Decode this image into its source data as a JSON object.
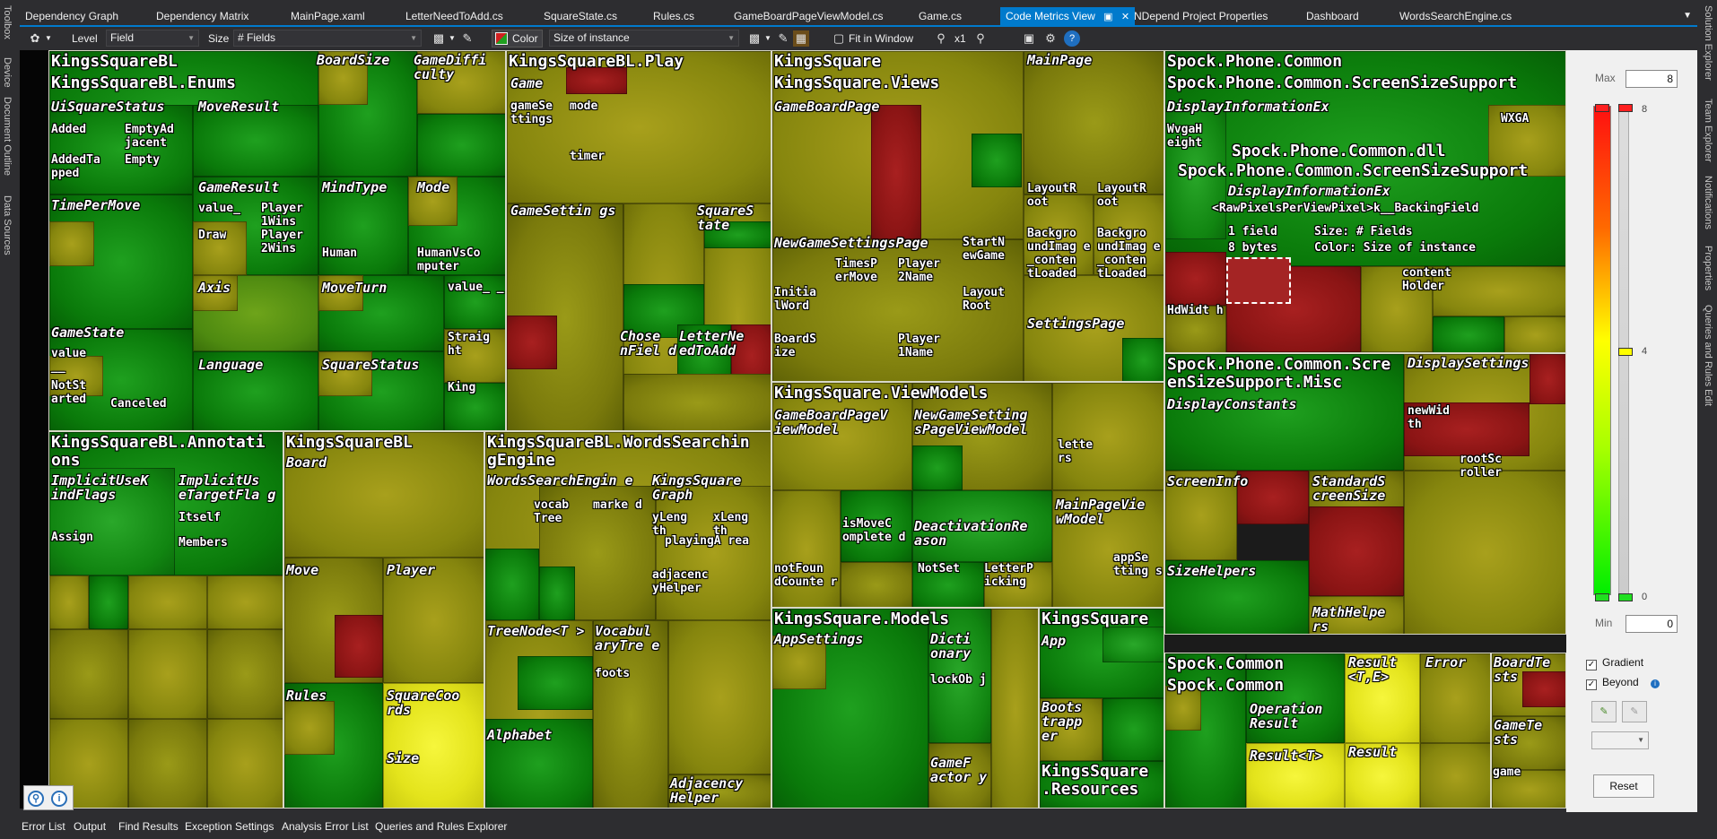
{
  "left_tools": [
    "Toolbox",
    "Device",
    "Document Outline",
    "Data Sources"
  ],
  "right_tools": [
    "Solution Explorer",
    "Team Explorer",
    "Notifications",
    "Properties",
    "Queries and Rules Edit"
  ],
  "doc_tabs": [
    {
      "label": "Dependency Graph"
    },
    {
      "label": "Dependency Matrix"
    },
    {
      "label": "MainPage.xaml"
    },
    {
      "label": "LetterNeedToAdd.cs"
    },
    {
      "label": "SquareState.cs"
    },
    {
      "label": "Rules.cs"
    },
    {
      "label": "GameBoardPageViewModel.cs"
    },
    {
      "label": "Game.cs"
    },
    {
      "label": "Code Metrics View",
      "active": true
    },
    {
      "label": "NDepend Project Properties"
    },
    {
      "label": "Dashboard"
    },
    {
      "label": "WordsSearchEngine.cs"
    }
  ],
  "toolbar": {
    "level_label": "Level",
    "level_value": "Field",
    "size_label": "Size",
    "size_value": "# Fields",
    "color_label": "Color",
    "color_value": "Size of instance",
    "fit_label": "Fit in Window",
    "zoom_value": "x1"
  },
  "treemap_labels": {
    "z1": "KingsSquareBL",
    "z1_enums": "KingsSquareBL.Enums",
    "boardsize": "BoardSize",
    "gamedifficulty": "GameDiffi culty",
    "uisquarestatus": "UiSquareStatus",
    "moveresult": "MoveResult",
    "added": "Added",
    "emptyadjacent": "EmptyAd jacent",
    "empty": "Empty",
    "addedtapped": "AddedTa pped",
    "gameresult": "GameResult",
    "mindtype": "MindType",
    "mode": "Mode",
    "timepermove": "TimePerMove",
    "value_": "value_",
    "player1wins": "Player 1Wins",
    "player2wins": "Player 2Wins",
    "draw": "Draw",
    "human": "Human",
    "humanvscomputer": "HumanVsCo mputer",
    "axis": "Axis",
    "moveturn": "MoveTurn",
    "value_2": "value_ _",
    "gamestate": "GameState",
    "value_3": "value __",
    "language": "Language",
    "squarestatus": "SquareStatus",
    "straight": "Straig ht",
    "king": "King",
    "notstarted": "NotSt arted",
    "canceled": "Canceled",
    "z2": "KingsSquareBL.Play",
    "game": "Game",
    "gamesettings_f": "gameSe ttings",
    "mode_f": "mode",
    "timer": "timer",
    "gamesettings": "GameSettin gs",
    "squarestate": "SquareS tate",
    "chosenfield": "Chose nFiel d",
    "letterneedtoadd": "LetterNe edToAdd",
    "z3": "KingsSquare",
    "z3_views": "KingsSquare.Views",
    "mainpage": "MainPage",
    "gameboardpage": "GameBoardPage",
    "layoutroot1": "LayoutR oot",
    "layoutroot2": "LayoutR oot",
    "newgamesettingspage": "NewGameSettingsPage",
    "startnewgame": "StartN ewGame",
    "timespermove": "TimesP erMove",
    "player2name": "Player 2Name",
    "bg1": "Backgro undImag e _conten tLoaded",
    "bg2": "Backgro undImag e _conten tLoaded",
    "initialword": "Initia lWord",
    "layoutroot3": "Layout Root",
    "boardsize_f": "BoardS ize",
    "player1name": "Player 1Name",
    "settingspage": "SettingsPage",
    "z4": "Spock.Phone.Common",
    "z4_ssup": "Spock.Phone.Common.ScreenSizeSupport",
    "displayinfoex": "DisplayInformationEx",
    "wvgaheight": "WvgaH eight",
    "wxga": "WXGA",
    "tt_dll": "Spock.Phone.Common.dll",
    "tt_ns": "Spock.Phone.Common.ScreenSizeSupport",
    "tt_type": "DisplayInformationEx",
    "tt_field": "<RawPixelsPerViewPixel>k__BackingField",
    "tt_count": "1 field",
    "tt_bytes": "8 bytes",
    "tt_size": "Size: # Fields",
    "tt_color": "Color: Size of instance",
    "contentholder": "content Holder",
    "hdwidth": "HdWidt h",
    "z5": "KingsSquareBL.Annotati ons",
    "implicitusekindflags": "ImplicitUseK indFlags",
    "implicitusetargetflags": "ImplicitUs eTargetFla g",
    "itself": "Itself",
    "assign": "Assign",
    "members": "Members",
    "z6": "KingsSquareBL",
    "board": "Board",
    "move": "Move",
    "player": "Player",
    "rules": "Rules",
    "squarecoords": "SquareCoo rds",
    "size": "Size",
    "z7": "KingsSquareBL.WordsSearchin gEngine",
    "wse": "WordsSearchEngin e",
    "vocabtree": "vocab Tree",
    "marked": "marke d",
    "ksgraph": "KingsSquare Graph",
    "ylength": "yLeng th",
    "xlength": "xLeng th",
    "playingarea": "playingA rea",
    "adjacencyhelper_f": "adjacenc yHelper",
    "treenode": "TreeNode<T >",
    "vocabularytree": "Vocabul aryTre e",
    "foots": "foots",
    "alphabet": "Alphabet",
    "adjacencyhelper": "Adjacency Helper",
    "z8": "KingsSquare.ViewModels",
    "gbpvm": "GameBoardPageV iewModel",
    "ngspvm": "NewGameSetting sPageViewModel",
    "letters": "lette rs",
    "mainpagevm": "MainPageVie wModel",
    "ismovecompleted": "isMoveC omplete d",
    "deactivationreason": "DeactivationRe ason",
    "notfoundcounter": "notFoun dCounte r",
    "notset": "NotSet",
    "letterpicking": "LetterP icking",
    "appsettings_f": "appSe tting s",
    "z9": "KingsSquare.Models",
    "appsettings": "AppSettings",
    "dictionary": "Dicti onary",
    "lockobj": "lockOb j",
    "gamefactory": "GameF actor y",
    "z10": "KingsSquare",
    "app": "App",
    "bootstrapper": "Boots trapp er",
    "resources": "KingsSquare .Resources",
    "z11": "Spock.Phone.Common.Scre enSizeSupport.Misc",
    "displaysettings": "DisplaySettings",
    "displayconstants": "DisplayConstants",
    "newwidth": "newWid th",
    "rootscroller": "rootSc roller",
    "screeninfo": "ScreenInfo",
    "standardscreensize": "StandardS creenSize",
    "sizehelpers": "SizeHelpers",
    "mathhelpers": "MathHelpe rs",
    "z12": "Spock.Common",
    "z12b": "Spock.Common",
    "resultte": "Result <T,E>",
    "error": "Error",
    "operationresult": "Operation Result",
    "resultt": "Result<T>",
    "result": "Result",
    "boardtests": "BoardTe sts",
    "gametests": "GameTe sts",
    "game_f": "game"
  },
  "color_panel": {
    "max_label": "Max",
    "max_value": "8",
    "min_label": "Min",
    "min_value": "0",
    "tick_top": "8",
    "tick_mid": "4",
    "tick_bottom": "0",
    "gradient_label": "Gradient",
    "beyond_label": "Beyond",
    "gradient_checked": true,
    "beyond_checked": true,
    "reset_label": "Reset"
  },
  "bottom_tabs": [
    "Error List",
    "Output",
    "Find Results",
    "Exception Settings",
    "Analysis Error List",
    "Queries and Rules Explorer"
  ],
  "colors": {
    "accent": "#007acc",
    "bg": "#2d2d30",
    "green": "#0a7a0a",
    "olive": "#86860e",
    "red": "#8a1414",
    "yellow": "#e4e41c"
  }
}
